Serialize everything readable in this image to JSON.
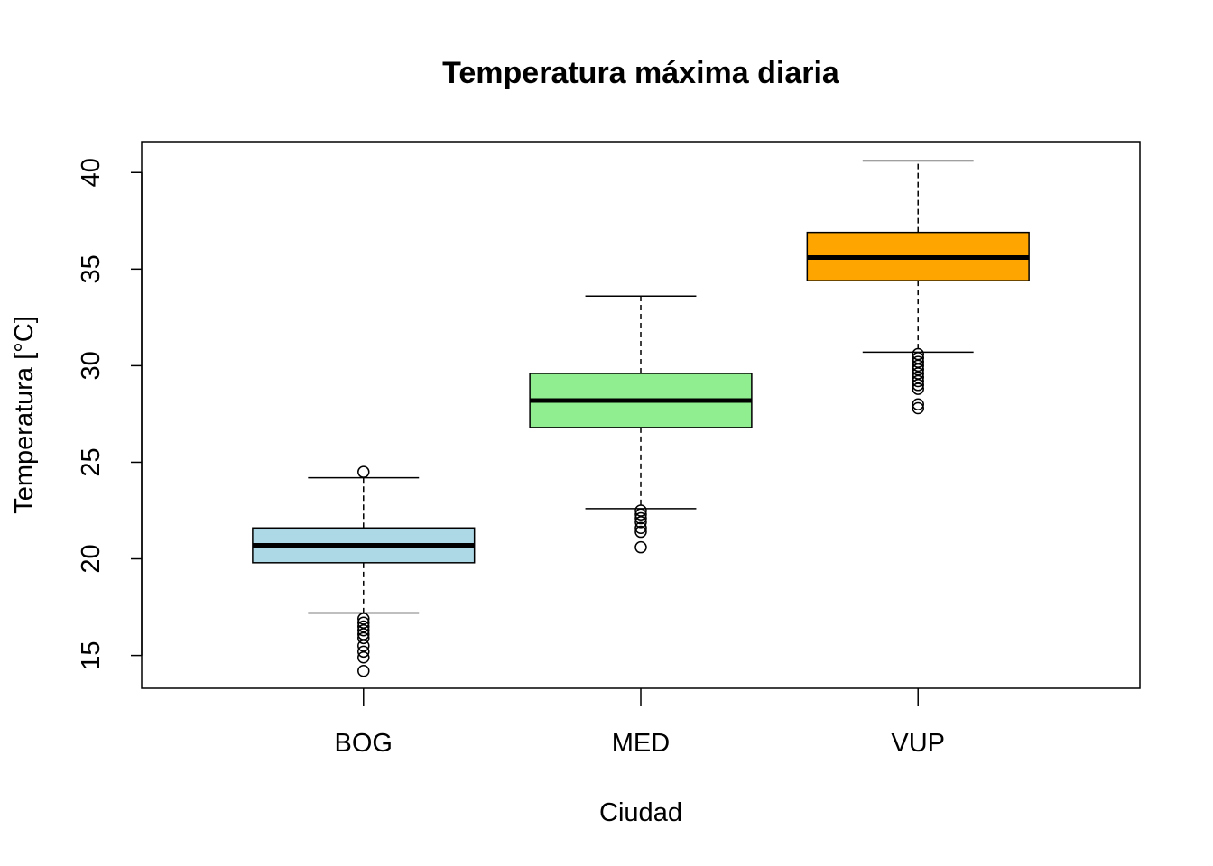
{
  "chart_data": {
    "type": "boxplot",
    "title": "Temperatura máxima diaria",
    "xlabel": "Ciudad",
    "ylabel": "Temperatura [°C]",
    "ylim": [
      13.3,
      41.6
    ],
    "yticks": [
      15,
      20,
      25,
      30,
      35,
      40
    ],
    "grid": false,
    "legend": "none",
    "categories": [
      "BOG",
      "MED",
      "VUP"
    ],
    "boxes": [
      {
        "category": "BOG",
        "color": "#add8e6",
        "whisker_low": 17.2,
        "q1": 19.8,
        "median": 20.7,
        "q3": 21.6,
        "whisker_high": 24.2,
        "outliers": [
          24.5,
          16.9,
          16.7,
          16.5,
          16.3,
          16.1,
          15.9,
          15.5,
          15.2,
          14.9,
          14.2
        ]
      },
      {
        "category": "MED",
        "color": "#90ee90",
        "whisker_low": 22.6,
        "q1": 26.8,
        "median": 28.2,
        "q3": 29.6,
        "whisker_high": 33.6,
        "outliers": [
          22.5,
          22.3,
          22.1,
          21.9,
          21.6,
          21.4,
          20.6
        ]
      },
      {
        "category": "VUP",
        "color": "#ffa500",
        "whisker_low": 30.7,
        "q1": 34.4,
        "median": 35.6,
        "q3": 36.9,
        "whisker_high": 40.6,
        "outliers": [
          30.6,
          30.4,
          30.2,
          30.0,
          29.8,
          29.6,
          29.4,
          29.2,
          29.0,
          28.8,
          28.0,
          27.8
        ]
      }
    ]
  }
}
